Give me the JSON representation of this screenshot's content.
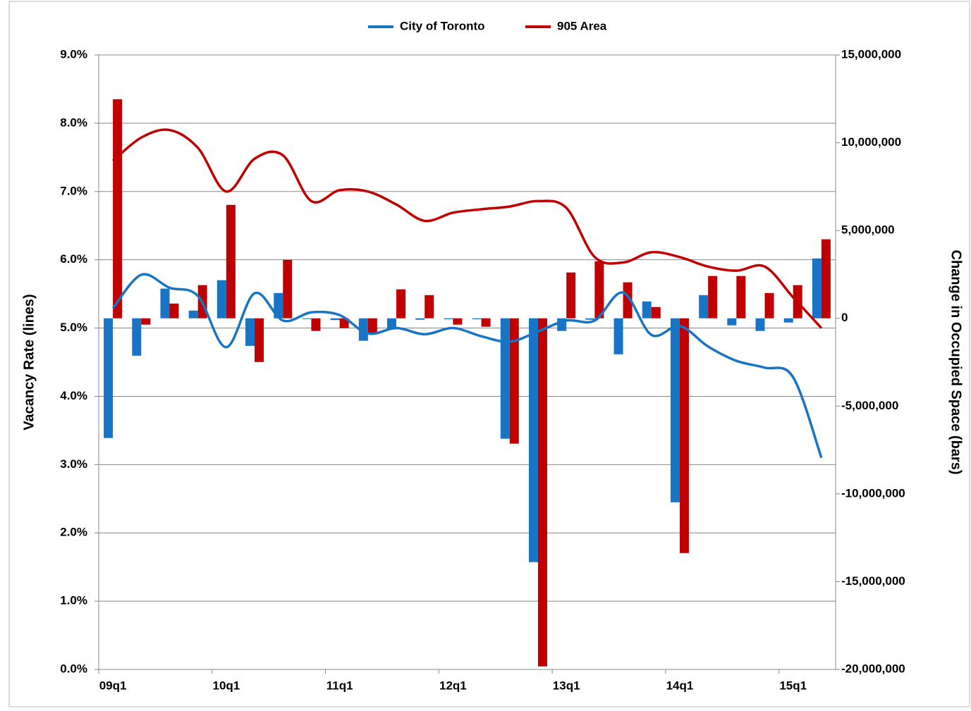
{
  "chart_data": {
    "type": "bar-line",
    "categories": [
      "09q1",
      null,
      null,
      null,
      "10q1",
      null,
      null,
      null,
      "11q1",
      null,
      null,
      null,
      "12q1",
      null,
      null,
      null,
      "13q1",
      null,
      null,
      null,
      "14q1",
      null,
      null,
      null,
      "15q1",
      null
    ],
    "series": [
      {
        "name": "City of Toronto",
        "color": "#1874c4",
        "values": [
          5.29,
          5.78,
          5.59,
          5.47,
          4.72,
          5.51,
          5.11,
          5.23,
          5.19,
          4.92,
          5.0,
          4.91,
          5.0,
          4.88,
          4.8,
          4.95,
          5.11,
          5.11,
          5.52,
          4.9,
          5.03,
          4.73,
          4.52,
          4.42,
          4.28,
          3.1
        ],
        "bar_values": [
          -6820000,
          -2130000,
          1690000,
          440000,
          2170000,
          -1570000,
          1440000,
          0,
          -100000,
          -1280000,
          -640000,
          -80000,
          -50000,
          -50000,
          -6860000,
          -13890000,
          -720000,
          -80000,
          -2050000,
          960000,
          -10480000,
          1320000,
          -400000,
          -720000,
          -240000,
          3410000
        ]
      },
      {
        "name": "905 Area",
        "color": "#c00000",
        "values": [
          7.45,
          7.79,
          7.9,
          7.64,
          7.0,
          7.48,
          7.53,
          6.86,
          7.02,
          7.0,
          6.81,
          6.57,
          6.69,
          6.74,
          6.78,
          6.86,
          6.76,
          6.04,
          5.96,
          6.11,
          6.04,
          5.9,
          5.84,
          5.9,
          5.45,
          5.0
        ],
        "bar_values": [
          12480000,
          -360000,
          840000,
          1890000,
          6460000,
          -2490000,
          3330000,
          -720000,
          -560000,
          -840000,
          1650000,
          1320000,
          -360000,
          -480000,
          -7140000,
          -19830000,
          2610000,
          3250000,
          2050000,
          640000,
          -13370000,
          2410000,
          2410000,
          1440000,
          1890000,
          4500000
        ]
      }
    ],
    "y_label": "Vacancy Rate (lines)",
    "y2_label": "Change in Occupied Space (bars)",
    "ylim": [
      0,
      9
    ],
    "yticks": [
      {
        "value": 0,
        "label": "0.0%"
      },
      {
        "value": 1,
        "label": "1.0%"
      },
      {
        "value": 2,
        "label": "2.0%"
      },
      {
        "value": 3,
        "label": "3.0%"
      },
      {
        "value": 4,
        "label": "4.0%"
      },
      {
        "value": 5,
        "label": "5.0%"
      },
      {
        "value": 6,
        "label": "6.0%"
      },
      {
        "value": 7,
        "label": "7.0%"
      },
      {
        "value": 8,
        "label": "8.0%"
      },
      {
        "value": 9,
        "label": "9.0%"
      }
    ],
    "y2lim": [
      -20000000,
      15000000
    ],
    "y2ticks": [
      {
        "value": -20000000,
        "label": "-20,000,000"
      },
      {
        "value": -15000000,
        "label": "-15,000,000"
      },
      {
        "value": -10000000,
        "label": "-10,000,000"
      },
      {
        "value": -5000000,
        "label": "-5,000,000"
      },
      0,
      {
        "value": 5000000,
        "label": "5,000,000"
      },
      {
        "value": 10000000,
        "label": "10,000,000"
      },
      {
        "value": 15000000,
        "label": "15,000,000"
      }
    ],
    "grid": true,
    "legend": "top"
  }
}
